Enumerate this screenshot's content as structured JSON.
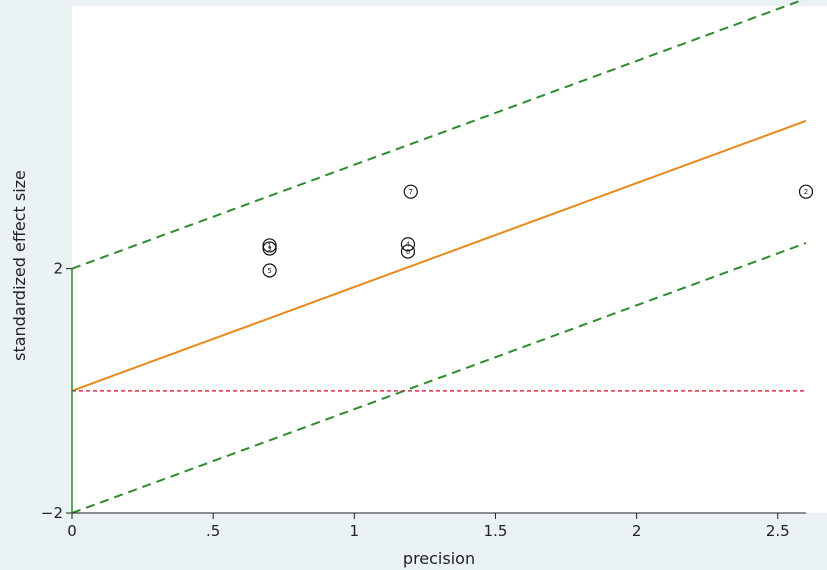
{
  "chart_data": {
    "type": "scatter",
    "title": "",
    "xlabel": "precision",
    "ylabel": "standardized effect size",
    "xlim": [
      0,
      2.6
    ],
    "ylim": [
      -2,
      6.3
    ],
    "x_ticks": [
      {
        "value": 0,
        "label": "0"
      },
      {
        "value": 0.5,
        "label": ".5"
      },
      {
        "value": 1,
        "label": "1"
      },
      {
        "value": 1.5,
        "label": "1.5"
      },
      {
        "value": 2,
        "label": "2"
      },
      {
        "value": 2.5,
        "label": "2.5"
      }
    ],
    "y_ticks": [
      {
        "value": -2,
        "label": "−2"
      },
      {
        "value": 2,
        "label": "2"
      }
    ],
    "points": [
      {
        "id": "1",
        "x": 0.7,
        "y": 2.38
      },
      {
        "id": "3",
        "x": 0.7,
        "y": 2.33
      },
      {
        "id": "5",
        "x": 0.7,
        "y": 1.97
      },
      {
        "id": "2",
        "x": 2.6,
        "y": 3.26
      },
      {
        "id": "4",
        "x": 1.19,
        "y": 2.4
      },
      {
        "id": "6",
        "x": 1.19,
        "y": 2.28
      },
      {
        "id": "7",
        "x": 1.2,
        "y": 3.26
      }
    ],
    "lines": [
      {
        "role": "regression",
        "color": "#e8891c",
        "dash": "solid",
        "intercept": 0.0,
        "slope": 1.7
      },
      {
        "role": "upper-ci",
        "color": "#2e8b2e",
        "dash": "dashed",
        "intercept": 2.0,
        "slope": 1.7
      },
      {
        "role": "lower-ci",
        "color": "#2e8b2e",
        "dash": "dashed",
        "intercept": -2.0,
        "slope": 1.7
      },
      {
        "role": "null-line",
        "color": "#d6334a",
        "dash": "dotted",
        "intercept": 0.0,
        "slope": 0
      }
    ],
    "grid": false,
    "legend": "none"
  }
}
